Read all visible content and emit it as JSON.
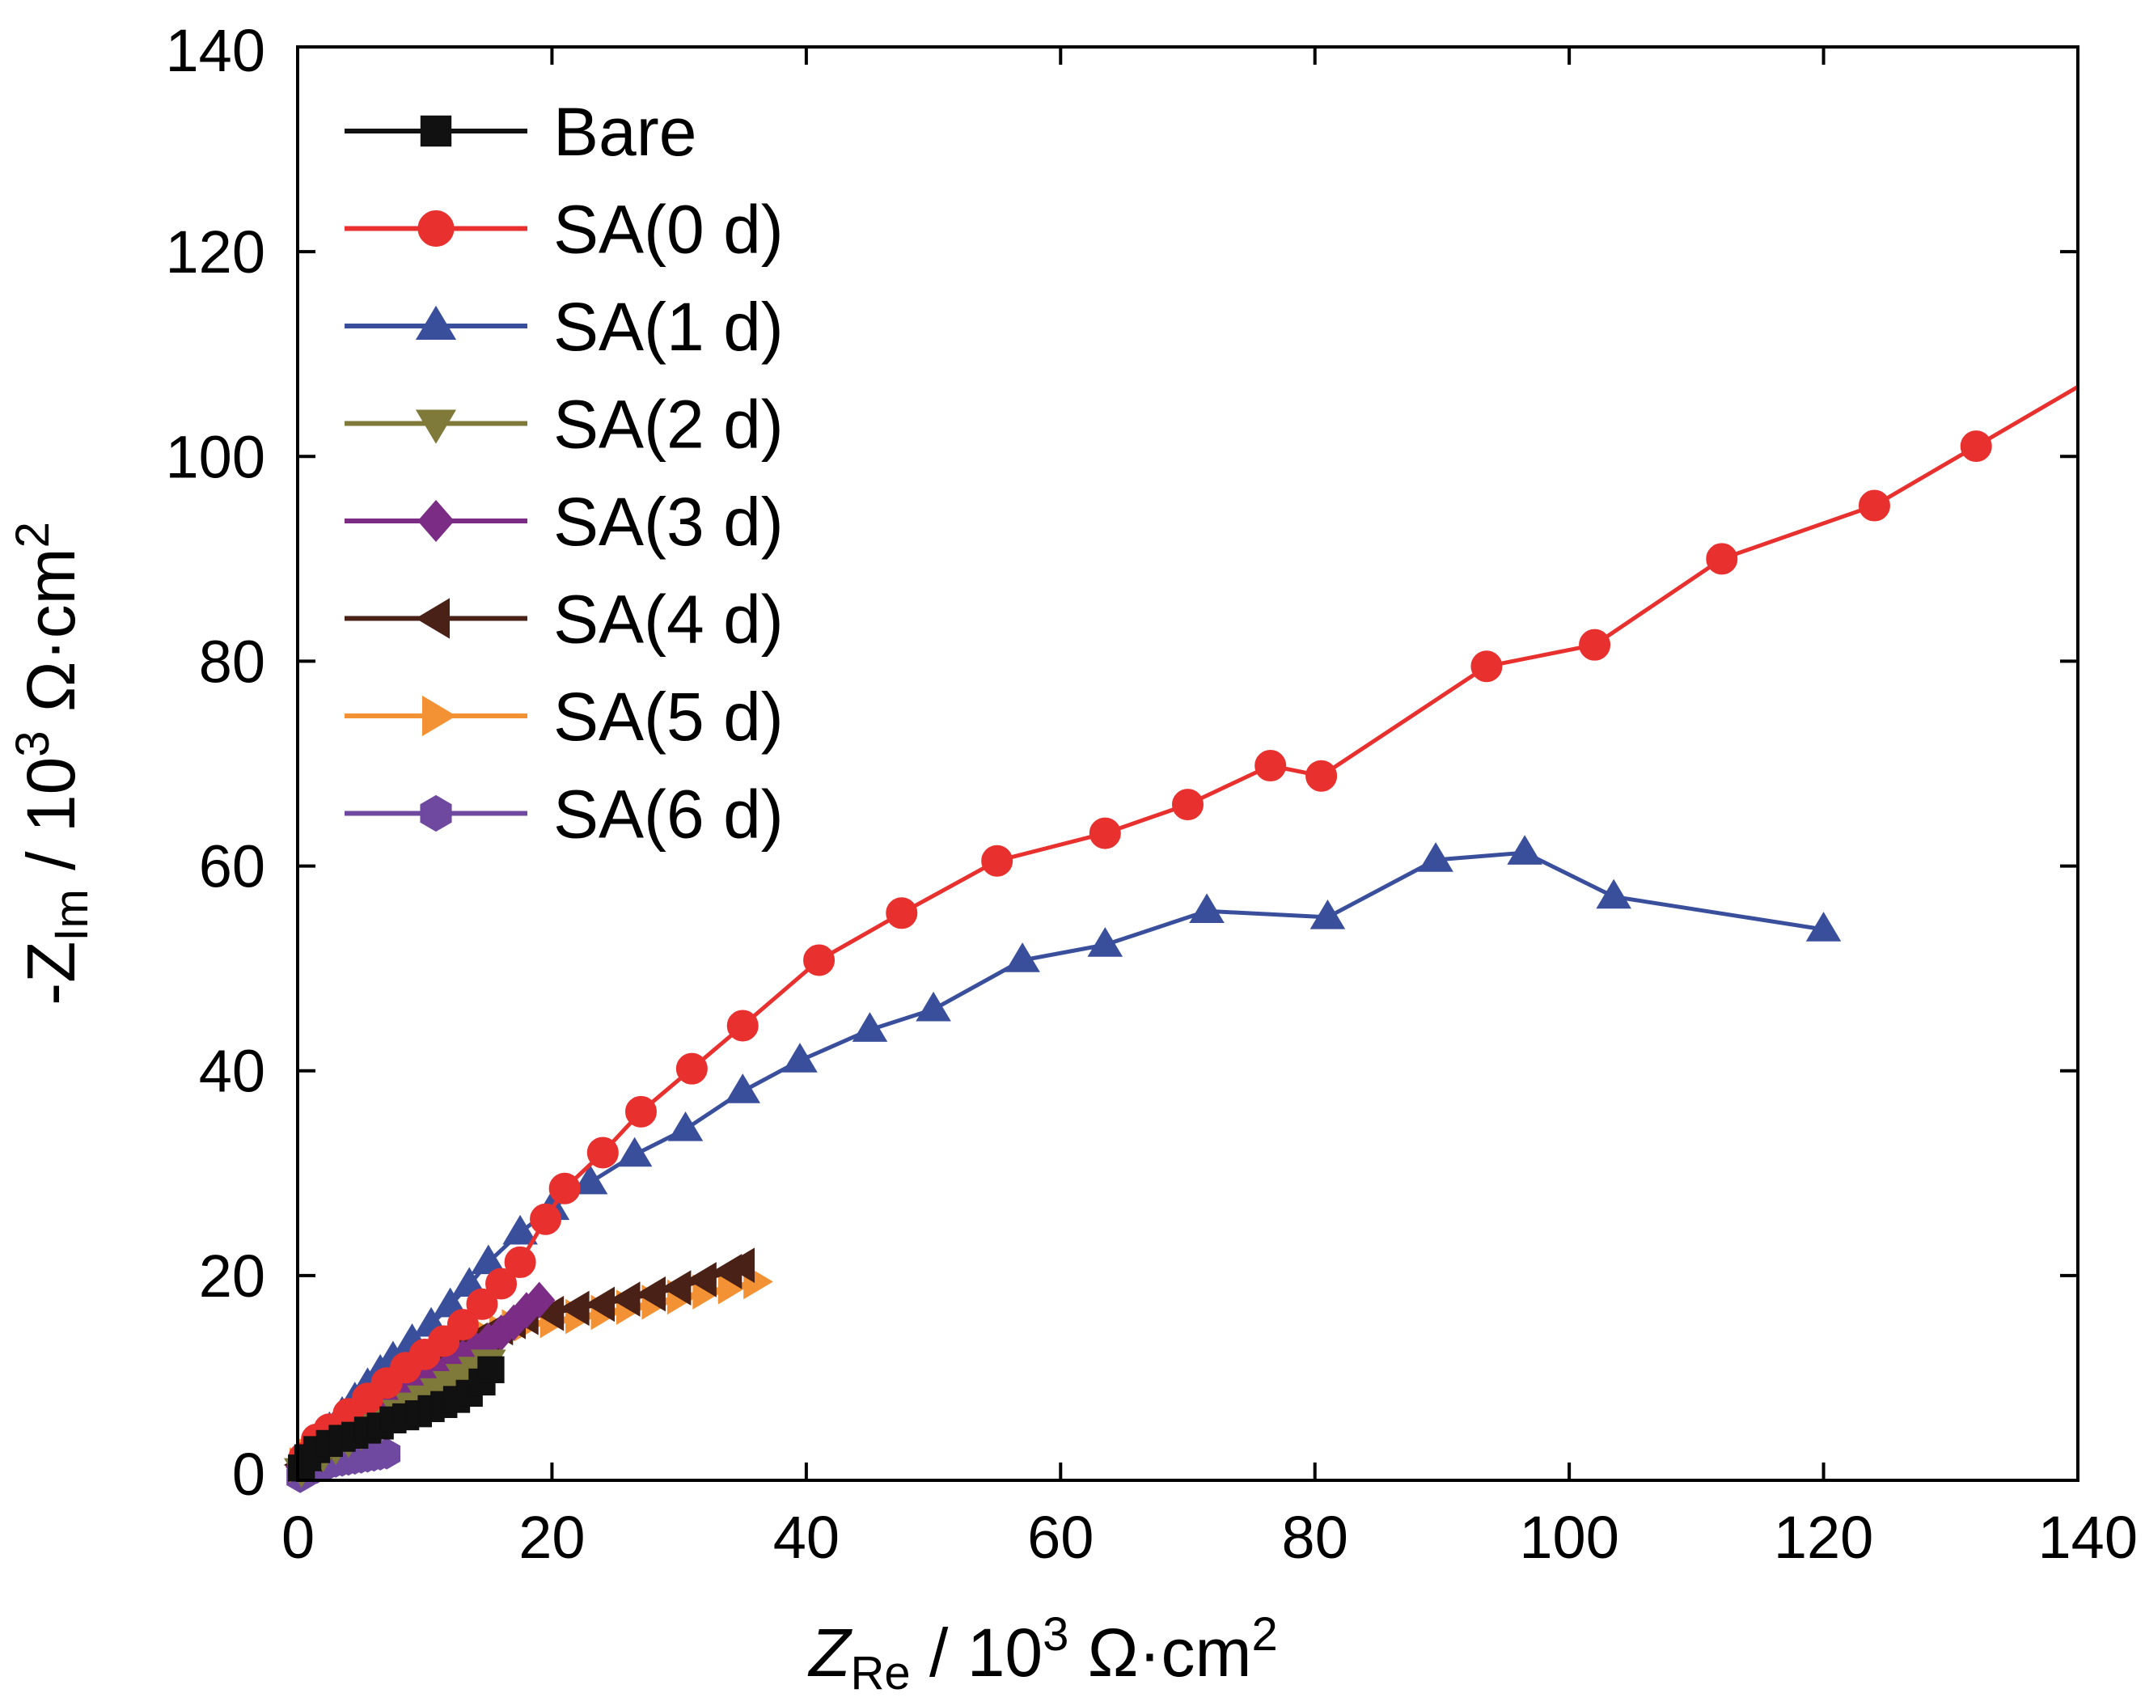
{
  "chart_data": {
    "type": "line",
    "xlabel": {
      "prefix": "Z",
      "sub": "Re",
      "rest": " / 10",
      "sup": "3",
      "unit": " Ω·cm",
      "sup2": "2"
    },
    "ylabel": {
      "prefix": "-Z",
      "sub": "Im",
      "rest": " / 10",
      "sup": "3",
      "unit": " Ω·cm",
      "sup2": "2"
    },
    "xlim": [
      0,
      140
    ],
    "ylim": [
      0,
      140
    ],
    "xticks": [
      "0",
      "20",
      "40",
      "60",
      "80",
      "100",
      "120",
      "140"
    ],
    "yticks": [
      "0",
      "20",
      "40",
      "60",
      "80",
      "100",
      "120",
      "140"
    ],
    "legend_position": "top-left",
    "series": [
      {
        "name": "Bare",
        "color": "#111111",
        "marker": "square",
        "points": [
          [
            0.3,
            1.2
          ],
          [
            0.8,
            2.2
          ],
          [
            1.5,
            3.0
          ],
          [
            2.5,
            3.6
          ],
          [
            3.5,
            4.1
          ],
          [
            4.5,
            4.4
          ],
          [
            5.5,
            4.9
          ],
          [
            6.5,
            5.3
          ],
          [
            7.5,
            5.9
          ],
          [
            8.5,
            6.2
          ],
          [
            9.5,
            6.5
          ],
          [
            10.5,
            7.0
          ],
          [
            11.5,
            7.4
          ],
          [
            12.5,
            7.9
          ],
          [
            13.5,
            8.5
          ],
          [
            14.5,
            9.6
          ],
          [
            15.2,
            10.8
          ]
        ]
      },
      {
        "name": "SA(0 d)",
        "color": "#e8312f",
        "marker": "circle",
        "extend_to_edge": true,
        "points": [
          [
            0.5,
            2.2
          ],
          [
            1.5,
            4.0
          ],
          [
            2.5,
            5.0
          ],
          [
            4,
            6.5
          ],
          [
            5.5,
            8.0
          ],
          [
            7,
            9.5
          ],
          [
            8.5,
            11.0
          ],
          [
            10,
            12.3
          ],
          [
            11.5,
            13.6
          ],
          [
            13,
            15.2
          ],
          [
            14.5,
            17.2
          ],
          [
            16,
            19.2
          ],
          [
            17.5,
            21.3
          ],
          [
            19.5,
            25.5
          ],
          [
            21,
            28.5
          ],
          [
            24,
            32
          ],
          [
            27,
            36
          ],
          [
            31,
            40.2
          ],
          [
            35,
            44.4
          ],
          [
            41,
            50.8
          ],
          [
            47.5,
            55.4
          ],
          [
            55,
            60.5
          ],
          [
            63.5,
            63.2
          ],
          [
            70,
            66
          ],
          [
            76.5,
            69.8
          ],
          [
            80.5,
            68.8
          ],
          [
            93.5,
            79.5
          ],
          [
            102,
            81.6
          ],
          [
            112,
            90
          ],
          [
            124,
            95.2
          ],
          [
            132,
            101
          ]
        ]
      },
      {
        "name": "SA(1 d)",
        "color": "#3a4f9c",
        "marker": "triangle-up",
        "points": [
          [
            0.5,
            2.2
          ],
          [
            1.5,
            3.6
          ],
          [
            2.5,
            5.0
          ],
          [
            3.5,
            6.5
          ],
          [
            4.5,
            7.9
          ],
          [
            5.5,
            9.3
          ],
          [
            6.5,
            10.6
          ],
          [
            7.5,
            11.9
          ],
          [
            9,
            13.6
          ],
          [
            10.5,
            15.2
          ],
          [
            12,
            17.1
          ],
          [
            13.5,
            19.1
          ],
          [
            15,
            21.3
          ],
          [
            17.5,
            24.2
          ],
          [
            20,
            26.6
          ],
          [
            23,
            29.1
          ],
          [
            26.5,
            31.8
          ],
          [
            30.5,
            34.3
          ],
          [
            35,
            38
          ],
          [
            39.5,
            41
          ],
          [
            45,
            44
          ],
          [
            50,
            46
          ],
          [
            57,
            50.8
          ],
          [
            63.5,
            52.3
          ],
          [
            71.5,
            55.6
          ],
          [
            81,
            55
          ],
          [
            89.5,
            60.6
          ],
          [
            96.5,
            61.3
          ],
          [
            103.5,
            57
          ],
          [
            120,
            53.8
          ]
        ]
      },
      {
        "name": "SA(2 d)",
        "color": "#7f7a3a",
        "marker": "triangle-down",
        "points": [
          [
            0.3,
            1.0
          ],
          [
            1,
            1.8
          ],
          [
            2,
            2.5
          ],
          [
            3,
            3.2
          ],
          [
            4,
            3.9
          ],
          [
            5,
            4.6
          ],
          [
            6,
            5.3
          ],
          [
            7,
            6.0
          ],
          [
            8,
            6.7
          ],
          [
            9,
            7.4
          ],
          [
            10,
            8.1
          ],
          [
            11,
            8.8
          ],
          [
            12,
            9.5
          ],
          [
            13,
            10.2
          ],
          [
            14,
            10.9
          ],
          [
            15,
            11.6
          ]
        ]
      },
      {
        "name": "SA(3 d)",
        "color": "#7b2c84",
        "marker": "diamond",
        "points": [
          [
            0.3,
            1.3
          ],
          [
            1,
            2.3
          ],
          [
            2,
            3.2
          ],
          [
            3,
            4.0
          ],
          [
            4,
            4.8
          ],
          [
            5,
            5.6
          ],
          [
            6,
            6.4
          ],
          [
            7,
            7.2
          ],
          [
            8,
            8.0
          ],
          [
            9,
            8.8
          ],
          [
            10,
            9.6
          ],
          [
            11,
            10.4
          ],
          [
            12,
            11.2
          ],
          [
            13,
            12.0
          ],
          [
            14,
            12.8
          ],
          [
            15,
            13.6
          ],
          [
            16,
            14.4
          ],
          [
            17,
            15.4
          ],
          [
            18,
            16.6
          ],
          [
            19,
            17.6
          ]
        ]
      },
      {
        "name": "SA(4 d)",
        "color": "#4a2116",
        "marker": "triangle-left",
        "points": [
          [
            0.3,
            1.5
          ],
          [
            1,
            2.5
          ],
          [
            2,
            3.6
          ],
          [
            3,
            4.6
          ],
          [
            4,
            5.5
          ],
          [
            5,
            6.4
          ],
          [
            6,
            7.3
          ],
          [
            7,
            8.2
          ],
          [
            8,
            9.0
          ],
          [
            9,
            9.8
          ],
          [
            10,
            10.6
          ],
          [
            11,
            11.4
          ],
          [
            12,
            12.2
          ],
          [
            13,
            13.0
          ],
          [
            14,
            13.7
          ],
          [
            15,
            14.3
          ],
          [
            16,
            14.9
          ],
          [
            17,
            15.5
          ],
          [
            18,
            15.9
          ],
          [
            20,
            16.3
          ],
          [
            22,
            16.8
          ],
          [
            24,
            17.2
          ],
          [
            26,
            17.7
          ],
          [
            28,
            18.2
          ],
          [
            30,
            18.8
          ],
          [
            32,
            19.6
          ],
          [
            34,
            20.4
          ],
          [
            35,
            21
          ]
        ]
      },
      {
        "name": "SA(5 d)",
        "color": "#f39234",
        "marker": "triangle-right",
        "points": [
          [
            0.3,
            1.5
          ],
          [
            1,
            2.4
          ],
          [
            2,
            3.4
          ],
          [
            3,
            4.4
          ],
          [
            4,
            5.3
          ],
          [
            5,
            6.2
          ],
          [
            6,
            7.1
          ],
          [
            7,
            8.0
          ],
          [
            8,
            8.8
          ],
          [
            9,
            9.6
          ],
          [
            10,
            10.4
          ],
          [
            11,
            11.2
          ],
          [
            12,
            12.0
          ],
          [
            13,
            12.7
          ],
          [
            14,
            13.3
          ],
          [
            15,
            13.9
          ],
          [
            16,
            14.5
          ],
          [
            17,
            15.0
          ],
          [
            18,
            15.3
          ],
          [
            20,
            15.6
          ],
          [
            22,
            16.0
          ],
          [
            24,
            16.4
          ],
          [
            26,
            16.9
          ],
          [
            28,
            17.4
          ],
          [
            30,
            17.9
          ],
          [
            32,
            18.4
          ],
          [
            34,
            18.9
          ],
          [
            36,
            19.4
          ]
        ]
      },
      {
        "name": "SA(6 d)",
        "color": "#6f48a0",
        "marker": "hexagon",
        "points": [
          [
            0.2,
            0.3
          ],
          [
            0.6,
            0.6
          ],
          [
            1.0,
            0.9
          ],
          [
            1.5,
            1.2
          ],
          [
            2.0,
            1.4
          ],
          [
            2.5,
            1.6
          ],
          [
            3.0,
            1.8
          ],
          [
            3.5,
            1.9
          ],
          [
            4.0,
            2.0
          ],
          [
            4.5,
            2.1
          ],
          [
            5.0,
            2.2
          ],
          [
            5.5,
            2.3
          ],
          [
            6.0,
            2.4
          ],
          [
            6.5,
            2.5
          ],
          [
            7,
            2.6
          ]
        ]
      }
    ]
  }
}
